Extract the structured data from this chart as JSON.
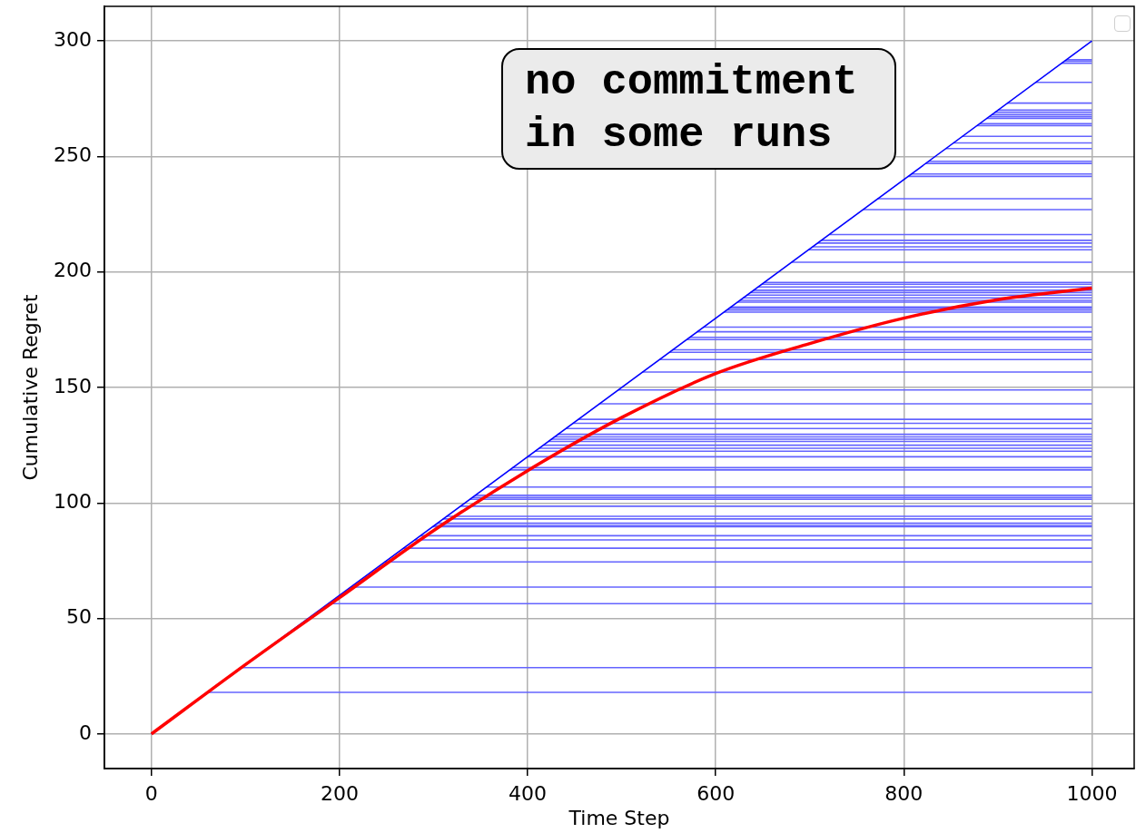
{
  "chart_data": {
    "type": "line",
    "xlabel": "Time Step",
    "ylabel": "Cumulative Regret",
    "annotations": [
      "no commitment in some runs"
    ],
    "xlim": [
      -50,
      1045
    ],
    "ylim": [
      -15,
      315
    ],
    "xticks": [
      0,
      200,
      400,
      600,
      800,
      1000
    ],
    "yticks": [
      0,
      50,
      100,
      150,
      200,
      250,
      300
    ],
    "grid": true,
    "marker": "none",
    "series": [
      {
        "color": "#6464ff",
        "x": [
          60,
          1000
        ],
        "values": [
          18,
          18
        ]
      },
      {
        "color": "#6464ff",
        "x": [
          96,
          1000
        ],
        "values": [
          28.7,
          28.7
        ]
      },
      {
        "color": "#6464ff",
        "x": [
          188,
          1000
        ],
        "values": [
          56.4,
          56.4
        ]
      },
      {
        "color": "#6464ff",
        "x": [
          212,
          1000
        ],
        "values": [
          63.6,
          63.6
        ]
      },
      {
        "color": "#6464ff",
        "x": [
          248,
          1000
        ],
        "values": [
          74.5,
          74.5
        ]
      },
      {
        "color": "#6464ff",
        "x": [
          268,
          1000
        ],
        "values": [
          80.4,
          80.4
        ]
      },
      {
        "color": "#6464ff",
        "x": [
          280,
          1000
        ],
        "values": [
          84,
          84
        ]
      },
      {
        "color": "#6464ff",
        "x": [
          286,
          1000
        ],
        "values": [
          85.8,
          85.8
        ]
      },
      {
        "color": "#6464ff",
        "x": [
          299,
          1000
        ],
        "values": [
          89.7,
          89.7
        ]
      },
      {
        "color": "#6464ff",
        "x": [
          301,
          1000
        ],
        "values": [
          90.2,
          90.2
        ]
      },
      {
        "color": "#6464ff",
        "x": [
          304,
          1000
        ],
        "values": [
          91.2,
          91.2
        ]
      },
      {
        "color": "#6464ff",
        "x": [
          310,
          1000
        ],
        "values": [
          93.1,
          93.1
        ]
      },
      {
        "color": "#6464ff",
        "x": [
          314,
          1000
        ],
        "values": [
          94.2,
          94.2
        ]
      },
      {
        "color": "#6464ff",
        "x": [
          329,
          1000
        ],
        "values": [
          98.6,
          98.6
        ]
      },
      {
        "color": "#6464ff",
        "x": [
          339,
          1000
        ],
        "values": [
          101.6,
          101.6
        ]
      },
      {
        "color": "#6464ff",
        "x": [
          341,
          1000
        ],
        "values": [
          102.3,
          102.3
        ]
      },
      {
        "color": "#6464ff",
        "x": [
          344,
          1000
        ],
        "values": [
          103.3,
          103.3
        ]
      },
      {
        "color": "#6464ff",
        "x": [
          356,
          1000
        ],
        "values": [
          106.9,
          106.9
        ]
      },
      {
        "color": "#6464ff",
        "x": [
          381,
          1000
        ],
        "values": [
          114.3,
          114.3
        ]
      },
      {
        "color": "#6464ff",
        "x": [
          384,
          1000
        ],
        "values": [
          115.3,
          115.3
        ]
      },
      {
        "color": "#6464ff",
        "x": [
          400,
          1000
        ],
        "values": [
          120,
          120
        ]
      },
      {
        "color": "#6464ff",
        "x": [
          408,
          1000
        ],
        "values": [
          122.4,
          122.4
        ]
      },
      {
        "color": "#6464ff",
        "x": [
          412,
          1000
        ],
        "values": [
          123.7,
          123.7
        ]
      },
      {
        "color": "#6464ff",
        "x": [
          417,
          1000
        ],
        "values": [
          125,
          125
        ]
      },
      {
        "color": "#6464ff",
        "x": [
          422,
          1000
        ],
        "values": [
          126.6,
          126.6
        ]
      },
      {
        "color": "#6464ff",
        "x": [
          425,
          1000
        ],
        "values": [
          127.6,
          127.6
        ]
      },
      {
        "color": "#6464ff",
        "x": [
          429,
          1000
        ],
        "values": [
          128.6,
          128.6
        ]
      },
      {
        "color": "#6464ff",
        "x": [
          432,
          1000
        ],
        "values": [
          129.7,
          129.7
        ]
      },
      {
        "color": "#6464ff",
        "x": [
          441,
          1000
        ],
        "values": [
          132.2,
          132.2
        ]
      },
      {
        "color": "#6464ff",
        "x": [
          448,
          1000
        ],
        "values": [
          134.5,
          134.5
        ]
      },
      {
        "color": "#6464ff",
        "x": [
          454,
          1000
        ],
        "values": [
          136.2,
          136.2
        ]
      },
      {
        "color": "#6464ff",
        "x": [
          476,
          1000
        ],
        "values": [
          142.9,
          142.9
        ]
      },
      {
        "color": "#6464ff",
        "x": [
          496,
          1000
        ],
        "values": [
          148.9,
          148.9
        ]
      },
      {
        "color": "#6464ff",
        "x": [
          522,
          1000
        ],
        "values": [
          156.7,
          156.7
        ]
      },
      {
        "color": "#6464ff",
        "x": [
          540,
          1000
        ],
        "values": [
          162.1,
          162.1
        ]
      },
      {
        "color": "#6464ff",
        "x": [
          551,
          1000
        ],
        "values": [
          165.2,
          165.2
        ]
      },
      {
        "color": "#6464ff",
        "x": [
          554,
          1000
        ],
        "values": [
          166.3,
          166.3
        ]
      },
      {
        "color": "#6464ff",
        "x": [
          569,
          1000
        ],
        "values": [
          170.7,
          170.7
        ]
      },
      {
        "color": "#6464ff",
        "x": [
          572,
          1000
        ],
        "values": [
          171.7,
          171.7
        ]
      },
      {
        "color": "#6464ff",
        "x": [
          580,
          1000
        ],
        "values": [
          174.1,
          174.1
        ]
      },
      {
        "color": "#6464ff",
        "x": [
          587,
          1000
        ],
        "values": [
          176.1,
          176.1
        ]
      },
      {
        "color": "#6464ff",
        "x": [
          609,
          1000
        ],
        "values": [
          182.6,
          182.6
        ]
      },
      {
        "color": "#6464ff",
        "x": [
          612,
          1000
        ],
        "values": [
          183.5,
          183.5
        ]
      },
      {
        "color": "#6464ff",
        "x": [
          614,
          1000
        ],
        "values": [
          184.3,
          184.3
        ]
      },
      {
        "color": "#6464ff",
        "x": [
          616,
          1000
        ],
        "values": [
          184.8,
          184.8
        ]
      },
      {
        "color": "#6464ff",
        "x": [
          623,
          1000
        ],
        "values": [
          186.9,
          186.9
        ]
      },
      {
        "color": "#6464ff",
        "x": [
          626,
          1000
        ],
        "values": [
          187.7,
          187.7
        ]
      },
      {
        "color": "#6464ff",
        "x": [
          629,
          1000
        ],
        "values": [
          188.8,
          188.8
        ]
      },
      {
        "color": "#6464ff",
        "x": [
          633,
          1000
        ],
        "values": [
          190,
          190
        ]
      },
      {
        "color": "#6464ff",
        "x": [
          637,
          1000
        ],
        "values": [
          191.1,
          191.1
        ]
      },
      {
        "color": "#6464ff",
        "x": [
          640,
          1000
        ],
        "values": [
          192.1,
          192.1
        ]
      },
      {
        "color": "#6464ff",
        "x": [
          645,
          1000
        ],
        "values": [
          193.5,
          193.5
        ]
      },
      {
        "color": "#6464ff",
        "x": [
          649,
          1000
        ],
        "values": [
          194.7,
          194.7
        ]
      },
      {
        "color": "#6464ff",
        "x": [
          652,
          1000
        ],
        "values": [
          195.5,
          195.5
        ]
      },
      {
        "color": "#6464ff",
        "x": [
          681,
          1000
        ],
        "values": [
          204.2,
          204.2
        ]
      },
      {
        "color": "#6464ff",
        "x": [
          699,
          1000
        ],
        "values": [
          209.6,
          209.6
        ]
      },
      {
        "color": "#6464ff",
        "x": [
          703,
          1000
        ],
        "values": [
          210.9,
          210.9
        ]
      },
      {
        "color": "#6464ff",
        "x": [
          708,
          1000
        ],
        "values": [
          212.5,
          212.5
        ]
      },
      {
        "color": "#6464ff",
        "x": [
          712,
          1000
        ],
        "values": [
          213.7,
          213.7
        ]
      },
      {
        "color": "#6464ff",
        "x": [
          721,
          1000
        ],
        "values": [
          216.2,
          216.2
        ]
      },
      {
        "color": "#6464ff",
        "x": [
          757,
          1000
        ],
        "values": [
          227,
          227
        ]
      },
      {
        "color": "#6464ff",
        "x": [
          772,
          1000
        ],
        "values": [
          231.7,
          231.7
        ]
      },
      {
        "color": "#6464ff",
        "x": [
          805,
          1000
        ],
        "values": [
          241.4,
          241.4
        ]
      },
      {
        "color": "#6464ff",
        "x": [
          808,
          1000
        ],
        "values": [
          242.4,
          242.4
        ]
      },
      {
        "color": "#6464ff",
        "x": [
          823,
          1000
        ],
        "values": [
          247,
          247
        ]
      },
      {
        "color": "#6464ff",
        "x": [
          826,
          1000
        ],
        "values": [
          247.9,
          247.9
        ]
      },
      {
        "color": "#6464ff",
        "x": [
          845,
          1000
        ],
        "values": [
          253.4,
          253.4
        ]
      },
      {
        "color": "#6464ff",
        "x": [
          853,
          1000
        ],
        "values": [
          255.9,
          255.9
        ]
      },
      {
        "color": "#6464ff",
        "x": [
          862,
          1000
        ],
        "values": [
          258.7,
          258.7
        ]
      },
      {
        "color": "#6464ff",
        "x": [
          878,
          1000
        ],
        "values": [
          263.4,
          263.4
        ]
      },
      {
        "color": "#6464ff",
        "x": [
          881,
          1000
        ],
        "values": [
          264.2,
          264.2
        ]
      },
      {
        "color": "#6464ff",
        "x": [
          888,
          1000
        ],
        "values": [
          266.5,
          266.5
        ]
      },
      {
        "color": "#6464ff",
        "x": [
          891,
          1000
        ],
        "values": [
          267.2,
          267.2
        ]
      },
      {
        "color": "#6464ff",
        "x": [
          894,
          1000
        ],
        "values": [
          268.1,
          268.1
        ]
      },
      {
        "color": "#6464ff",
        "x": [
          897,
          1000
        ],
        "values": [
          269.2,
          269.2
        ]
      },
      {
        "color": "#6464ff",
        "x": [
          900,
          1000
        ],
        "values": [
          270.1,
          270.1
        ]
      },
      {
        "color": "#6464ff",
        "x": [
          910,
          1000
        ],
        "values": [
          273.1,
          273.1
        ]
      },
      {
        "color": "#6464ff",
        "x": [
          940,
          1000
        ],
        "values": [
          282.1,
          282.1
        ]
      },
      {
        "color": "#6464ff",
        "x": [
          968,
          1000
        ],
        "values": [
          290.4,
          290.4
        ]
      },
      {
        "color": "#6464ff",
        "x": [
          971,
          1000
        ],
        "values": [
          291.3,
          291.3
        ]
      },
      {
        "color": "#6464ff",
        "x": [
          973,
          1000
        ],
        "values": [
          291.9,
          291.9
        ]
      },
      {
        "color": "#0000ff",
        "x": [
          0,
          1000
        ],
        "values": [
          0,
          300
        ]
      },
      {
        "color": "#ff0000",
        "x": [
          0,
          100,
          200,
          300,
          400,
          500,
          600,
          700,
          800,
          900,
          1000
        ],
        "values": [
          0,
          30,
          59,
          88,
          114,
          137,
          156,
          169,
          180,
          188,
          193
        ]
      }
    ]
  }
}
